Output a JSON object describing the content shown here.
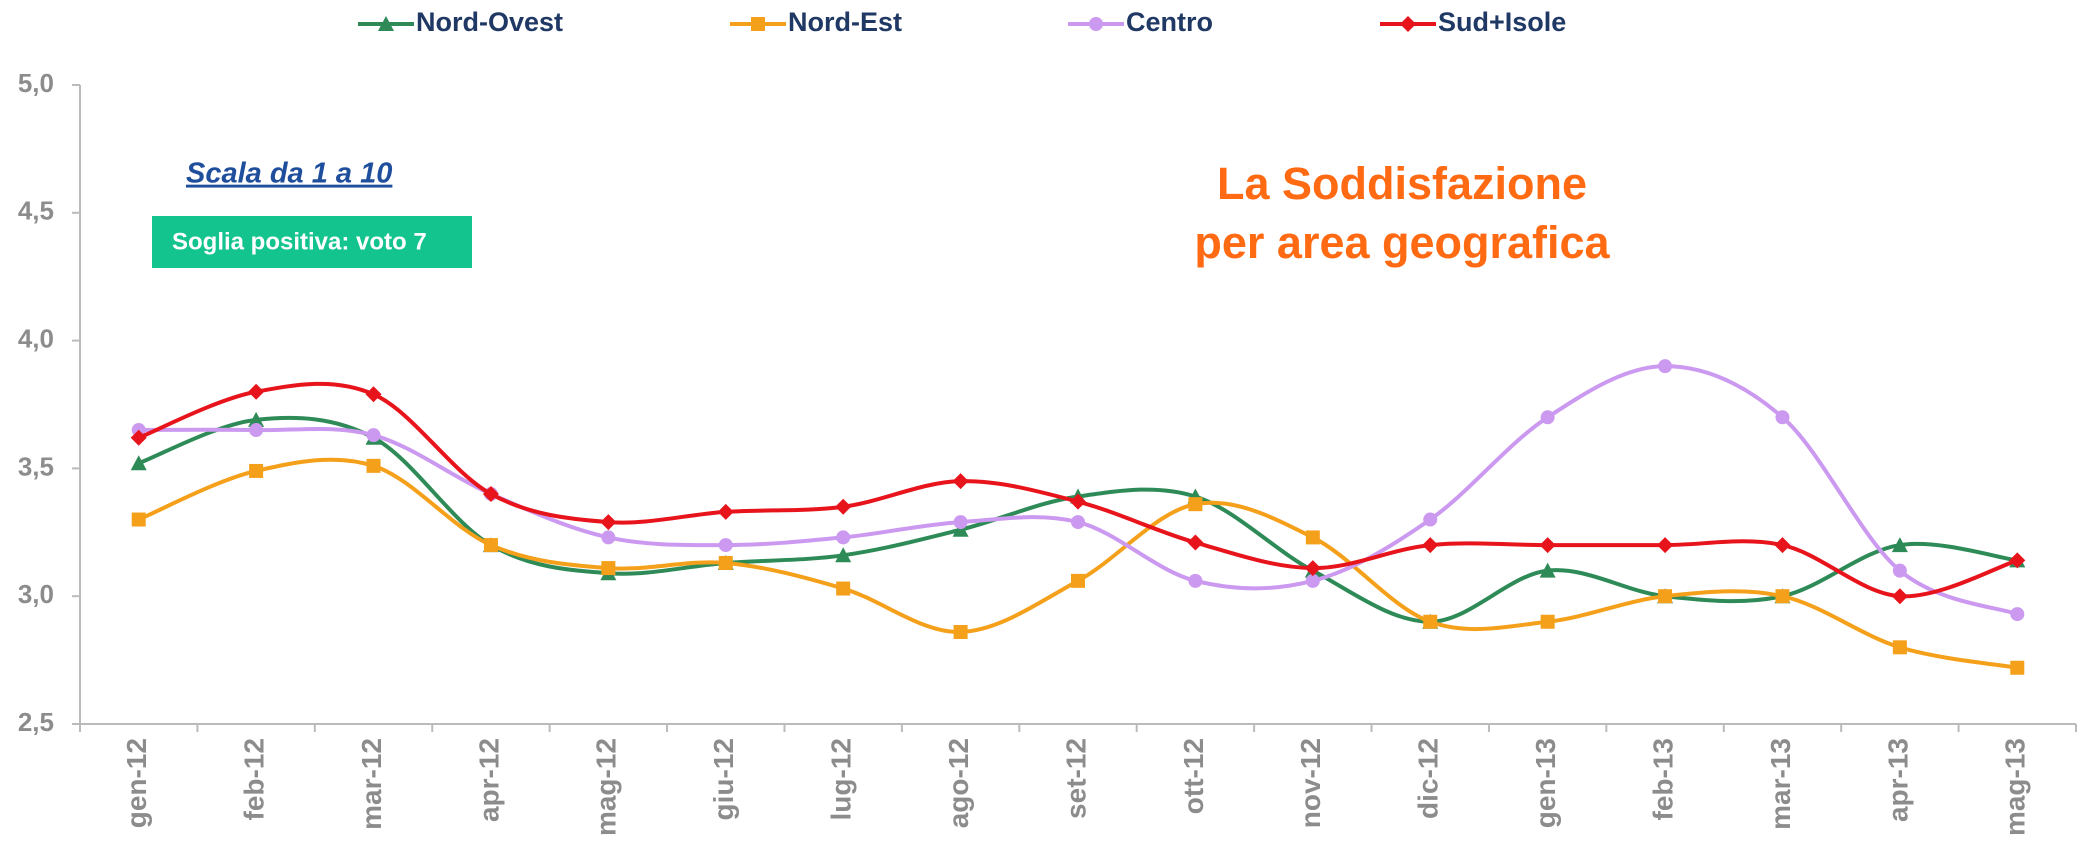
{
  "chart_data": {
    "type": "line",
    "title": [
      "La Soddisfazione",
      "per area geografica"
    ],
    "annotations": [
      "Scala da 1 a 10",
      "Soglia positiva: voto 7"
    ],
    "categories": [
      "gen-12",
      "feb-12",
      "mar-12",
      "apr-12",
      "mag-12",
      "giu-12",
      "lug-12",
      "ago-12",
      "set-12",
      "ott-12",
      "nov-12",
      "dic-12",
      "gen-13",
      "feb-13",
      "mar-13",
      "apr-13",
      "mag-13"
    ],
    "series": [
      {
        "name": "Nord-Ovest",
        "color": "#2e8b57",
        "marker": "triangle",
        "values": [
          3.52,
          3.69,
          3.62,
          3.2,
          3.09,
          3.13,
          3.16,
          3.26,
          3.39,
          3.39,
          3.1,
          2.9,
          3.1,
          3.0,
          3.0,
          3.2,
          3.14
        ]
      },
      {
        "name": "Nord-Est",
        "color": "#f5a01a",
        "marker": "square",
        "values": [
          3.3,
          3.49,
          3.51,
          3.2,
          3.11,
          3.13,
          3.03,
          2.86,
          3.06,
          3.36,
          3.23,
          2.9,
          2.9,
          3.0,
          3.0,
          2.8,
          2.72
        ]
      },
      {
        "name": "Centro",
        "color": "#cc99f0",
        "marker": "circle",
        "values": [
          3.65,
          3.65,
          3.63,
          3.4,
          3.23,
          3.2,
          3.23,
          3.29,
          3.29,
          3.06,
          3.06,
          3.3,
          3.7,
          3.9,
          3.7,
          3.1,
          2.93
        ]
      },
      {
        "name": "Sud+Isole",
        "color": "#e8141c",
        "marker": "diamond",
        "values": [
          3.62,
          3.8,
          3.79,
          3.4,
          3.29,
          3.33,
          3.35,
          3.45,
          3.37,
          3.21,
          3.11,
          3.2,
          3.2,
          3.2,
          3.2,
          3.0,
          3.14
        ]
      }
    ],
    "ylim": [
      2.5,
      5.0
    ],
    "yticks": [
      {
        "value": 2.5,
        "label": "2,5"
      },
      {
        "value": 3.0,
        "label": "3,0"
      },
      {
        "value": 3.5,
        "label": "3,5"
      },
      {
        "value": 4.0,
        "label": "4,0"
      },
      {
        "value": 4.5,
        "label": "4,5"
      },
      {
        "value": 5.0,
        "label": "5,0"
      }
    ],
    "smooth": true,
    "legend": "top"
  }
}
